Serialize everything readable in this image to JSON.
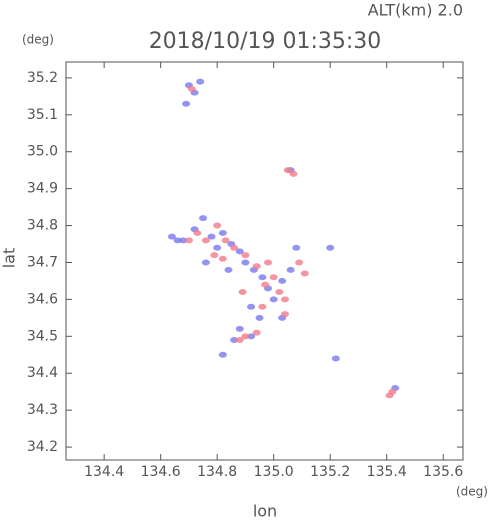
{
  "chart_data": {
    "type": "scatter",
    "title": "2018/10/19 01:35:30",
    "subtitle": "ALT(km) 2.0",
    "y_unit": "(deg)",
    "x_unit": "(deg)",
    "x_label": "lon",
    "y_label": "lat",
    "xlim": [
      134.265,
      135.67
    ],
    "ylim": [
      34.165,
      35.243
    ],
    "xticks": [
      134.4,
      134.6,
      134.8,
      {
        "value": 135.0,
        "label": "135.0"
      },
      135.2,
      135.4,
      135.6
    ],
    "yticks": [
      34.2,
      34.3,
      34.4,
      34.5,
      34.6,
      34.7,
      34.8,
      34.9,
      {
        "value": 35.0,
        "label": "35.0"
      },
      35.1,
      35.2
    ],
    "series": [
      {
        "color": "#7878ee",
        "x": [
          134.7,
          134.72,
          134.69,
          134.74,
          134.64,
          134.68,
          134.72,
          134.75,
          134.78,
          134.8,
          134.82,
          134.85,
          134.88,
          134.9,
          134.93,
          134.96,
          134.98,
          135.0,
          135.03,
          135.06,
          134.92,
          134.95,
          134.88,
          134.92,
          134.86,
          134.82,
          135.06,
          135.03,
          135.2,
          135.22,
          135.43,
          134.76,
          134.84,
          135.08,
          134.66
        ],
        "values": [
          35.18,
          35.16,
          35.13,
          35.19,
          34.77,
          34.76,
          34.79,
          34.82,
          34.77,
          34.74,
          34.78,
          34.75,
          34.73,
          34.7,
          34.68,
          34.66,
          34.63,
          34.6,
          34.65,
          34.68,
          34.58,
          34.55,
          34.52,
          34.5,
          34.49,
          34.45,
          34.95,
          34.55,
          34.74,
          34.44,
          34.36,
          34.7,
          34.68,
          34.74,
          34.76
        ]
      },
      {
        "color": "#f27a8a",
        "x": [
          134.71,
          134.73,
          134.7,
          134.76,
          134.79,
          134.83,
          134.86,
          134.9,
          134.94,
          134.97,
          135.0,
          135.02,
          134.96,
          134.9,
          134.88,
          134.94,
          135.05,
          135.07,
          135.42,
          135.41,
          134.8,
          134.98,
          135.04,
          134.82,
          135.09,
          135.11,
          134.89,
          135.04
        ],
        "values": [
          35.17,
          34.78,
          34.76,
          34.76,
          34.72,
          34.76,
          34.74,
          34.72,
          34.69,
          34.64,
          34.66,
          34.62,
          34.58,
          34.5,
          34.49,
          34.51,
          34.95,
          34.94,
          34.35,
          34.34,
          34.8,
          34.7,
          34.6,
          34.71,
          34.7,
          34.67,
          34.62,
          34.56
        ]
      }
    ]
  }
}
